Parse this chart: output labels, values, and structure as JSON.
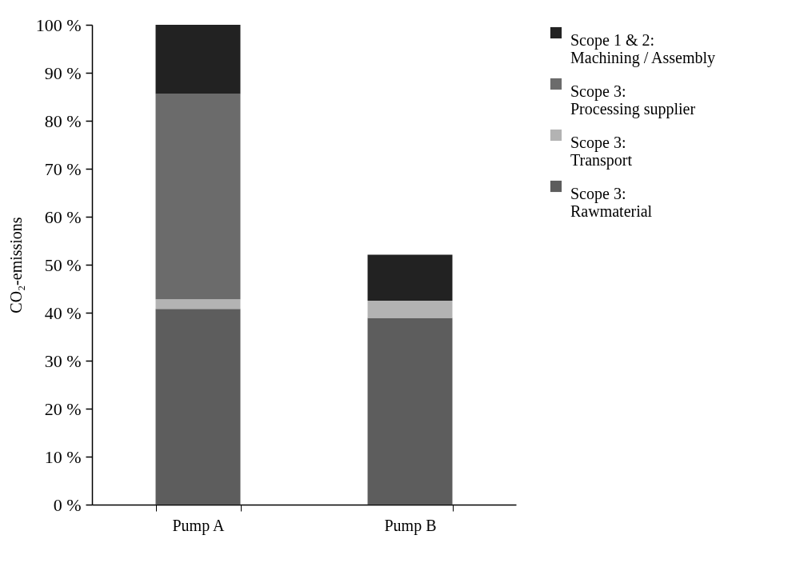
{
  "chart_data": {
    "type": "bar",
    "stacked": true,
    "ylabel": "CO₂-emissions",
    "categories": [
      "Pump A",
      "Pump B"
    ],
    "series": [
      {
        "name": "Scope 3:\nRawmaterial",
        "color": "#5d5d5d",
        "values": [
          40.8,
          38.9
        ]
      },
      {
        "name": "Scope 3:\nTransport",
        "color": "#b3b3b3",
        "values": [
          2.0,
          3.6
        ]
      },
      {
        "name": "Scope 3:\nProcessing supplier",
        "color": "#6b6b6b",
        "values": [
          42.8,
          0
        ]
      },
      {
        "name": "Scope 1 & 2:\nMachining / Assembly",
        "color": "#222222",
        "values": [
          14.4,
          9.6
        ]
      }
    ],
    "ylim": [
      0,
      100
    ],
    "yticks": [
      {
        "value": 0,
        "label": "0 %"
      },
      {
        "value": 10,
        "label": "10 %"
      },
      {
        "value": 20,
        "label": "20 %"
      },
      {
        "value": 30,
        "label": "30 %"
      },
      {
        "value": 40,
        "label": "40 %"
      },
      {
        "value": 50,
        "label": "50 %"
      },
      {
        "value": 60,
        "label": "60 %"
      },
      {
        "value": 70,
        "label": "70 %"
      },
      {
        "value": 80,
        "label": "80 %"
      },
      {
        "value": 90,
        "label": "90 %"
      },
      {
        "value": 100,
        "label": "100 %"
      }
    ],
    "grid": false,
    "legend": "right"
  }
}
